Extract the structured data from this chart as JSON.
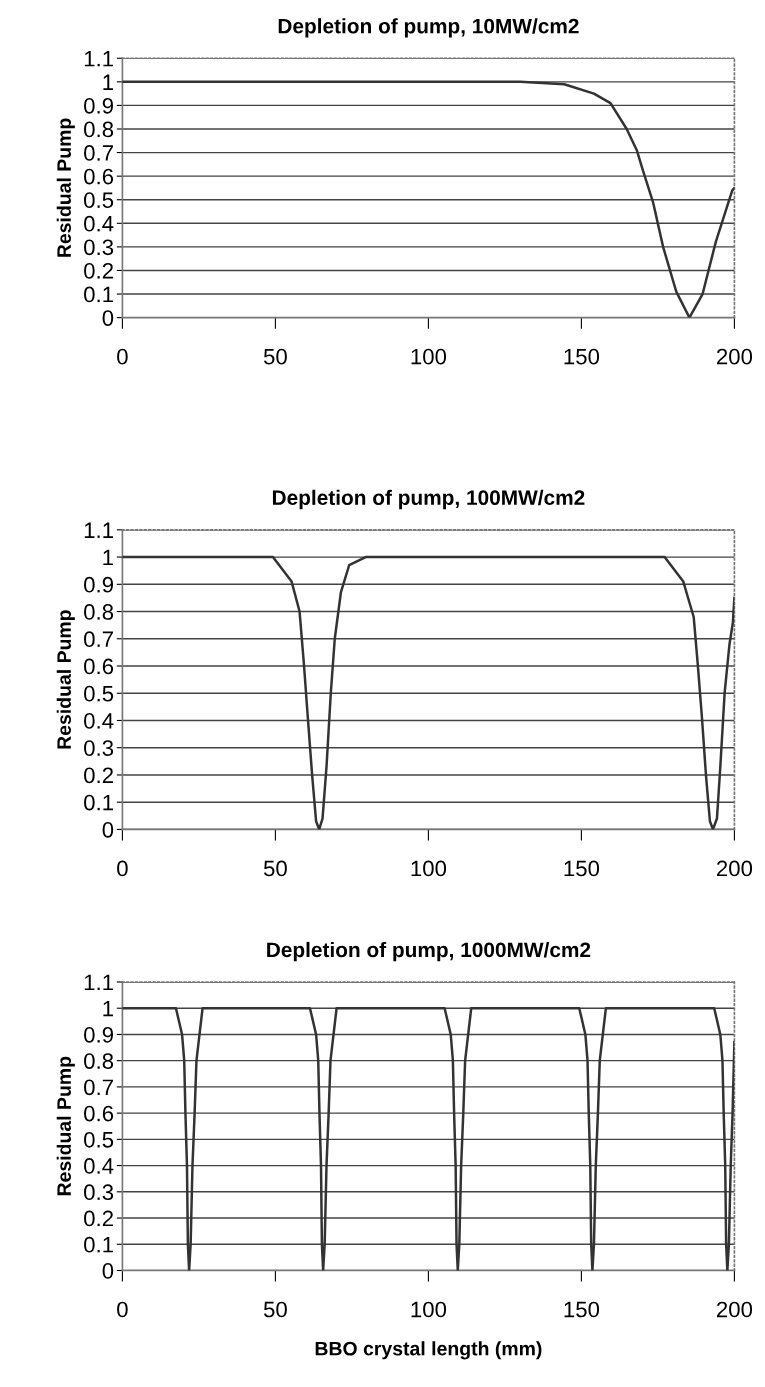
{
  "chart_data": [
    {
      "type": "line",
      "title": "Depletion of pump, 10MW/cm2",
      "ylabel": "Residual Pump",
      "xlim": [
        0,
        200
      ],
      "xticks": [
        0,
        50,
        100,
        150,
        200
      ],
      "ylim": [
        0,
        1.1
      ],
      "yticks": [
        0,
        0.1,
        0.2,
        0.3,
        0.4,
        0.5,
        0.6,
        0.7,
        0.8,
        0.9,
        1,
        1.1
      ],
      "grid": "y",
      "legend": false,
      "marker": "none",
      "line_style": "solid",
      "series": [
        {
          "color": "#333333",
          "x": [
            0,
            50,
            100,
            130,
            144.4,
            154.1,
            159.5,
            164.8,
            168.1,
            170.2,
            173.4,
            176.7,
            181,
            185.3,
            189.6,
            193.9,
            199.3,
            200
          ],
          "values": [
            1,
            1,
            1,
            1,
            0.99,
            0.95,
            0.91,
            0.8,
            0.71,
            0.62,
            0.49,
            0.3,
            0.11,
            0,
            0.1,
            0.32,
            0.54,
            0.55
          ]
        }
      ]
    },
    {
      "type": "line",
      "title": "Depletion of pump, 100MW/cm2",
      "ylabel": "Residual Pump",
      "xlim": [
        0,
        200
      ],
      "xticks": [
        0,
        50,
        100,
        150,
        200
      ],
      "ylim": [
        0,
        1.1
      ],
      "yticks": [
        0,
        0.1,
        0.2,
        0.3,
        0.4,
        0.5,
        0.6,
        0.7,
        0.8,
        0.9,
        1,
        1.1
      ],
      "grid": "y",
      "legend": false,
      "marker": "none",
      "line_style": "solid",
      "series": [
        {
          "color": "#333333",
          "x": [
            0,
            49.2,
            55.3,
            57.9,
            59.3,
            60.6,
            62,
            63.3,
            64.3,
            65.4,
            66.7,
            68.1,
            69.4,
            71.4,
            74.1,
            79.5,
            177.2,
            183.3,
            186.7,
            188,
            189.4,
            190.7,
            192,
            193,
            194.3,
            195.4,
            196.8,
            198.4,
            199.5,
            200
          ],
          "values": [
            1,
            1,
            0.91,
            0.8,
            0.61,
            0.41,
            0.2,
            0.03,
            0,
            0.04,
            0.23,
            0.5,
            0.7,
            0.87,
            0.97,
            1,
            1,
            0.91,
            0.78,
            0.61,
            0.41,
            0.2,
            0.03,
            0,
            0.04,
            0.23,
            0.5,
            0.68,
            0.76,
            0.85
          ]
        }
      ]
    },
    {
      "type": "line",
      "title": "Depletion of pump, 1000MW/cm2",
      "xlabel": "BBO crystal length (mm)",
      "ylabel": "Residual Pump",
      "xlim": [
        0,
        200
      ],
      "xticks": [
        0,
        50,
        100,
        150,
        200
      ],
      "ylim": [
        0,
        1.1
      ],
      "yticks": [
        0,
        0.1,
        0.2,
        0.3,
        0.4,
        0.5,
        0.6,
        0.7,
        0.8,
        0.9,
        1,
        1.1
      ],
      "grid": "y",
      "legend": false,
      "marker": "none",
      "line_style": "solid",
      "series": [
        {
          "color": "#333333",
          "x": [
            0,
            17.5,
            19.5,
            20.2,
            20.6,
            21.1,
            21.4,
            21.8,
            22.3,
            22.9,
            23.6,
            24.2,
            25.2,
            26.2,
            61.3,
            63.3,
            64.0,
            64.4,
            64.9,
            65.2,
            65.6,
            66.1,
            66.7,
            67.4,
            68.0,
            69.0,
            70.0,
            105.3,
            107.3,
            108.0,
            108.4,
            108.9,
            109.2,
            109.6,
            110.1,
            110.7,
            111.4,
            112.0,
            113.0,
            114.0,
            149.3,
            151.3,
            152.0,
            152.4,
            152.9,
            153.2,
            153.6,
            154.1,
            154.7,
            155.4,
            156.0,
            157.0,
            158.0,
            193.4,
            195.4,
            196.1,
            196.5,
            197.0,
            197.3,
            197.7,
            198.2,
            198.8,
            199.4,
            200
          ],
          "values": [
            1,
            1,
            0.9,
            0.8,
            0.6,
            0.4,
            0.1,
            0,
            0.1,
            0.4,
            0.6,
            0.8,
            0.9,
            1,
            1,
            0.9,
            0.8,
            0.6,
            0.4,
            0.1,
            0,
            0.1,
            0.4,
            0.6,
            0.8,
            0.9,
            1,
            1,
            0.9,
            0.8,
            0.6,
            0.4,
            0.1,
            0,
            0.1,
            0.4,
            0.6,
            0.8,
            0.9,
            1,
            1,
            0.9,
            0.8,
            0.6,
            0.4,
            0.1,
            0,
            0.1,
            0.4,
            0.6,
            0.8,
            0.9,
            1,
            1,
            0.9,
            0.8,
            0.6,
            0.4,
            0.1,
            0,
            0.1,
            0.4,
            0.6,
            0.87
          ]
        }
      ]
    }
  ]
}
